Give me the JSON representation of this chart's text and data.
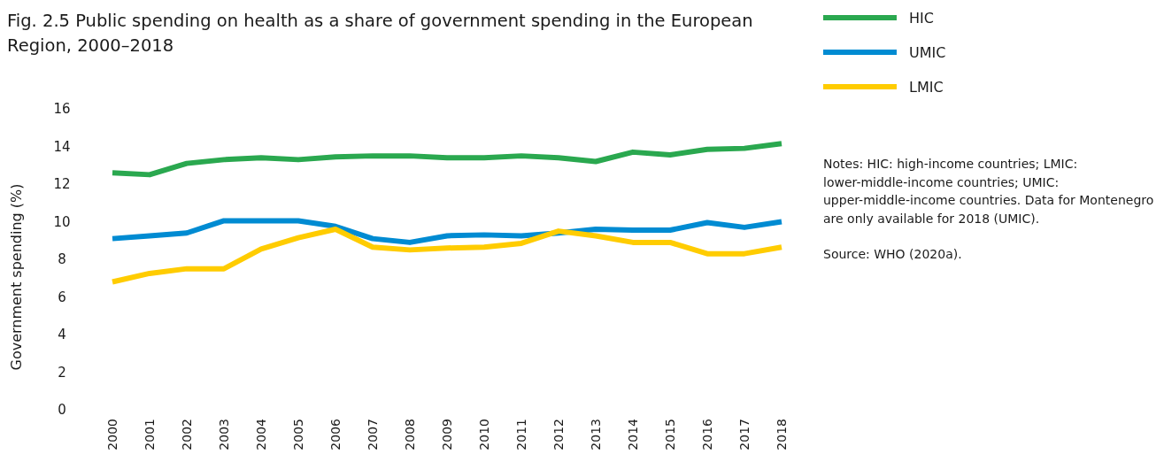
{
  "chart_data": {
    "type": "line",
    "title": "Fig. 2.5 Public spending on health as a share of government spending in the European Region, 2000–2018",
    "ylabel": "Government spending (%)",
    "categories": [
      "2000",
      "2001",
      "2002",
      "2003",
      "2004",
      "2005",
      "2006",
      "2007",
      "2008",
      "2009",
      "2010",
      "2011",
      "2012",
      "2013",
      "2014",
      "2015",
      "2016",
      "2017",
      "2018"
    ],
    "series": [
      {
        "name": "HIC",
        "color": "#2aa84f",
        "values": [
          12.6,
          12.5,
          13.1,
          13.3,
          13.4,
          13.3,
          13.45,
          13.5,
          13.5,
          13.4,
          13.4,
          13.5,
          13.4,
          13.2,
          13.7,
          13.55,
          13.85,
          13.9,
          14.15
        ]
      },
      {
        "name": "UMIC",
        "color": "#008bd2",
        "values": [
          9.1,
          9.25,
          9.4,
          10.05,
          10.05,
          10.05,
          9.75,
          9.1,
          8.9,
          9.25,
          9.3,
          9.25,
          9.4,
          9.6,
          9.55,
          9.55,
          9.95,
          9.7,
          10.0
        ]
      },
      {
        "name": "LMIC",
        "color": "#ffcc00",
        "values": [
          6.8,
          7.25,
          7.5,
          7.5,
          8.55,
          9.15,
          9.6,
          8.65,
          8.5,
          8.6,
          8.65,
          8.85,
          9.5,
          9.25,
          8.9,
          8.9,
          8.3,
          8.3,
          8.65
        ]
      }
    ],
    "ylim": [
      0,
      16
    ],
    "yticks": [
      0,
      2,
      4,
      6,
      8,
      10,
      12,
      14,
      16
    ],
    "grid": false,
    "legend": "top right",
    "line_style": "solid",
    "marker": "none",
    "annotations": [
      "Notes: HIC: high-income countries; LMIC: lower-middle-income countries; UMIC: upper-middle-income countries. Data for Montenegro are only available for 2018 (UMIC).",
      "Source: WHO (2020a)."
    ]
  }
}
